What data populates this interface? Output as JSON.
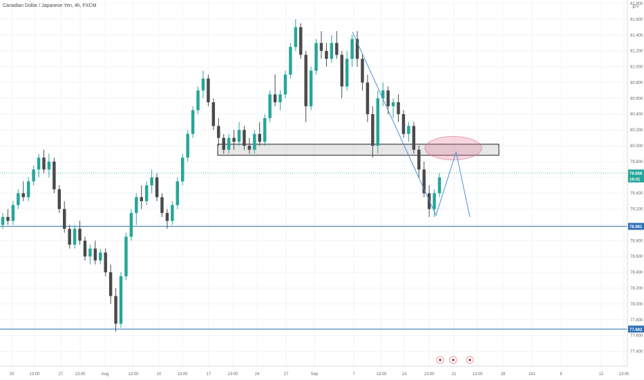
{
  "header": {
    "symbol_title": "Canadian Dollar / Japanese Yen, 4h, FXCM"
  },
  "currency_label": "JPY",
  "chart_data": {
    "type": "candlestick",
    "title": "Canadian Dollar / Japanese Yen, 4h, FXCM",
    "y_range": [
      77.3,
      81.8
    ],
    "y_ticks": [
      "81.800",
      "81.600",
      "81.400",
      "81.200",
      "81.000",
      "80.800",
      "80.600",
      "80.400",
      "80.200",
      "80.000",
      "79.800",
      "79.600",
      "79.400",
      "79.200",
      "79.000",
      "78.800",
      "78.600",
      "78.400",
      "78.200",
      "78.000",
      "77.800",
      "77.600",
      "77.400"
    ],
    "x_ticks": [
      "20",
      "13:00",
      "27",
      "13:00",
      "Aug",
      "13:00",
      "10",
      "13:00",
      "17",
      "13:00",
      "24",
      "27",
      "Sep",
      "7",
      "13:00",
      "14",
      "13:00",
      "21",
      "13:00",
      "28",
      "Oct",
      "6",
      "12",
      "13:00"
    ],
    "price_tags": [
      {
        "label": "79.656",
        "color": "#26a69a",
        "value": 79.656
      },
      {
        "label": "16:41",
        "color": "#26a69a",
        "value": 79.58
      },
      {
        "label": "78.981",
        "color": "#2f6fb5",
        "value": 78.981
      },
      {
        "label": "77.682",
        "color": "#2f6fb5",
        "value": 77.682
      }
    ],
    "horizontal_lines": [
      {
        "value": 78.981,
        "color": "#2f6fb5"
      },
      {
        "value": 77.682,
        "color": "#2f6fb5"
      },
      {
        "value": 79.656,
        "color": "#26a69a",
        "style": "dotted"
      }
    ],
    "zone": {
      "top": 80.02,
      "bottom": 79.88,
      "start_date": "2018-08-17",
      "end_date": "2018-09-26"
    },
    "target_ellipse": {
      "center_value": 79.97,
      "center_date": "2018-09-24"
    },
    "projection_line_values": [
      81.44,
      79.12,
      79.92,
      79.1
    ],
    "event_markers": 3,
    "candles": [
      [
        79.0,
        79.15,
        78.95,
        79.1
      ],
      [
        79.1,
        79.2,
        79.0,
        79.05
      ],
      [
        79.05,
        79.3,
        79.0,
        79.25
      ],
      [
        79.25,
        79.45,
        79.2,
        79.4
      ],
      [
        79.4,
        79.55,
        79.3,
        79.35
      ],
      [
        79.35,
        79.6,
        79.3,
        79.55
      ],
      [
        79.55,
        79.75,
        79.5,
        79.7
      ],
      [
        79.7,
        79.9,
        79.6,
        79.85
      ],
      [
        79.85,
        79.95,
        79.65,
        79.7
      ],
      [
        79.7,
        79.9,
        79.6,
        79.8
      ],
      [
        79.8,
        79.85,
        79.4,
        79.45
      ],
      [
        79.45,
        79.5,
        79.15,
        79.2
      ],
      [
        79.2,
        79.3,
        78.9,
        78.95
      ],
      [
        78.95,
        79.0,
        78.7,
        78.75
      ],
      [
        78.75,
        79.0,
        78.7,
        78.95
      ],
      [
        78.95,
        79.05,
        78.75,
        78.8
      ],
      [
        78.8,
        78.85,
        78.55,
        78.6
      ],
      [
        78.6,
        78.75,
        78.5,
        78.7
      ],
      [
        78.7,
        78.8,
        78.5,
        78.55
      ],
      [
        78.55,
        78.7,
        78.5,
        78.65
      ],
      [
        78.65,
        78.7,
        78.35,
        78.4
      ],
      [
        78.4,
        78.5,
        78.0,
        78.1
      ],
      [
        78.1,
        78.2,
        77.65,
        77.75
      ],
      [
        77.75,
        78.4,
        77.7,
        78.35
      ],
      [
        78.35,
        78.9,
        78.3,
        78.85
      ],
      [
        78.85,
        79.2,
        78.8,
        79.15
      ],
      [
        79.15,
        79.4,
        79.0,
        79.35
      ],
      [
        79.35,
        79.5,
        79.2,
        79.3
      ],
      [
        79.3,
        79.55,
        79.25,
        79.5
      ],
      [
        79.5,
        79.7,
        79.4,
        79.6
      ],
      [
        79.6,
        79.65,
        79.3,
        79.35
      ],
      [
        79.35,
        79.4,
        79.1,
        79.15
      ],
      [
        79.15,
        79.2,
        78.95,
        79.05
      ],
      [
        79.05,
        79.3,
        79.0,
        79.25
      ],
      [
        79.25,
        79.6,
        79.2,
        79.55
      ],
      [
        79.55,
        79.9,
        79.5,
        79.85
      ],
      [
        79.85,
        80.2,
        79.8,
        80.15
      ],
      [
        80.15,
        80.5,
        80.1,
        80.45
      ],
      [
        80.45,
        80.75,
        80.4,
        80.7
      ],
      [
        80.7,
        80.95,
        80.6,
        80.85
      ],
      [
        80.85,
        80.9,
        80.5,
        80.55
      ],
      [
        80.55,
        80.6,
        80.2,
        80.25
      ],
      [
        80.25,
        80.35,
        80.0,
        80.1
      ],
      [
        80.1,
        80.15,
        79.9,
        79.95
      ],
      [
        79.95,
        80.15,
        79.9,
        80.1
      ],
      [
        80.1,
        80.2,
        79.95,
        80.05
      ],
      [
        80.05,
        80.3,
        80.0,
        80.2
      ],
      [
        80.2,
        80.25,
        79.95,
        80.0
      ],
      [
        80.0,
        80.1,
        79.9,
        79.95
      ],
      [
        79.95,
        80.2,
        79.9,
        80.15
      ],
      [
        80.15,
        80.3,
        80.0,
        80.05
      ],
      [
        80.05,
        80.4,
        80.0,
        80.35
      ],
      [
        80.35,
        80.7,
        80.3,
        80.65
      ],
      [
        80.65,
        80.9,
        80.5,
        80.55
      ],
      [
        80.55,
        80.7,
        80.45,
        80.65
      ],
      [
        80.65,
        80.95,
        80.6,
        80.9
      ],
      [
        80.9,
        81.3,
        80.85,
        81.25
      ],
      [
        81.25,
        81.6,
        81.2,
        81.5
      ],
      [
        81.5,
        81.55,
        81.1,
        81.15
      ],
      [
        81.15,
        81.2,
        80.3,
        80.5
      ],
      [
        80.5,
        81.0,
        80.45,
        80.95
      ],
      [
        80.95,
        81.35,
        80.9,
        81.3
      ],
      [
        81.3,
        81.45,
        81.1,
        81.2
      ],
      [
        81.2,
        81.3,
        81.0,
        81.1
      ],
      [
        81.1,
        81.4,
        81.05,
        81.3
      ],
      [
        81.3,
        81.45,
        81.1,
        81.15
      ],
      [
        81.15,
        81.2,
        80.6,
        80.75
      ],
      [
        80.75,
        81.2,
        80.7,
        81.1
      ],
      [
        81.1,
        81.4,
        81.0,
        81.35
      ],
      [
        81.35,
        81.45,
        81.0,
        81.1
      ],
      [
        81.1,
        81.15,
        80.7,
        80.8
      ],
      [
        80.8,
        80.9,
        80.3,
        80.4
      ],
      [
        80.4,
        80.5,
        79.85,
        80.0
      ],
      [
        80.0,
        80.7,
        79.9,
        80.6
      ],
      [
        80.6,
        80.8,
        80.5,
        80.7
      ],
      [
        80.7,
        80.75,
        80.4,
        80.5
      ],
      [
        80.5,
        80.6,
        80.35,
        80.55
      ],
      [
        80.55,
        80.65,
        80.3,
        80.4
      ],
      [
        80.4,
        80.45,
        80.1,
        80.15
      ],
      [
        80.15,
        80.3,
        80.05,
        80.25
      ],
      [
        80.25,
        80.3,
        79.9,
        79.95
      ],
      [
        79.95,
        80.0,
        79.6,
        79.7
      ],
      [
        79.7,
        79.8,
        79.35,
        79.4
      ],
      [
        79.4,
        79.5,
        79.1,
        79.2
      ],
      [
        79.2,
        79.45,
        79.1,
        79.4
      ],
      [
        79.4,
        79.65,
        79.35,
        79.6
      ]
    ]
  }
}
